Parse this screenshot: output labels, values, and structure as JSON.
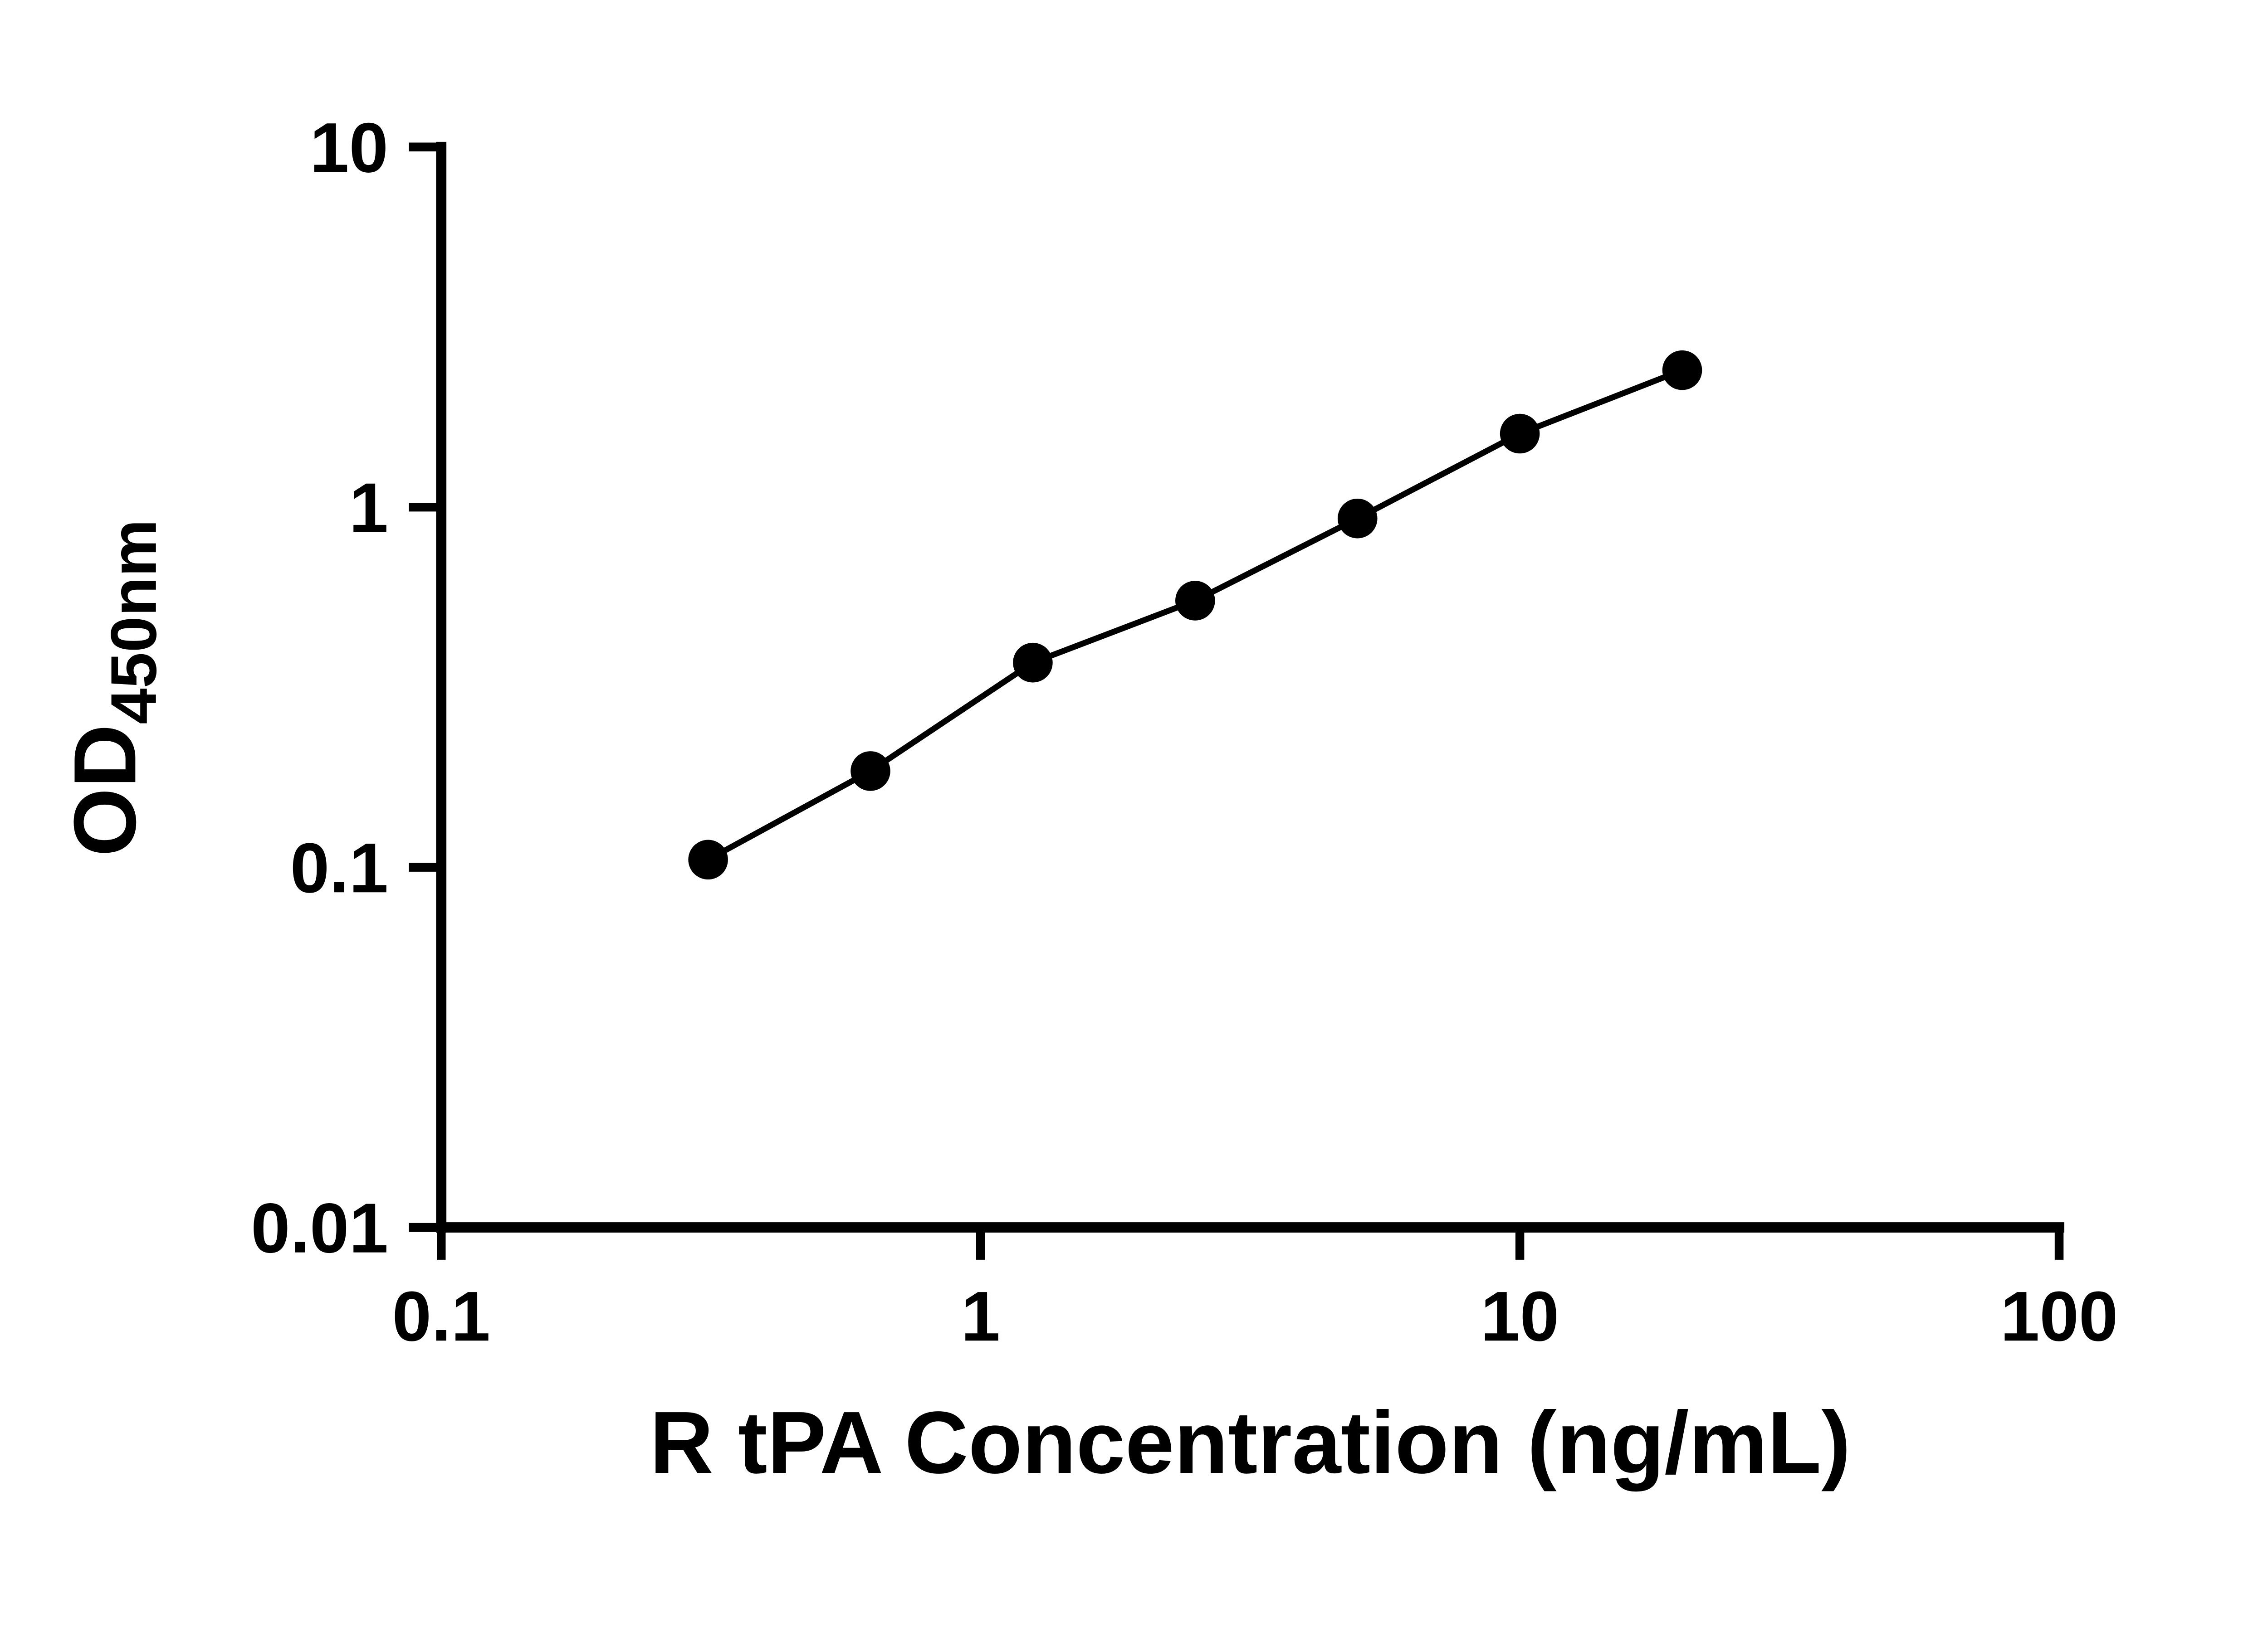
{
  "page": {
    "background": "#ffffff"
  },
  "style": {
    "axis_color": "#000000",
    "line_color": "#000000",
    "marker_color": "#000000"
  },
  "chart_data": {
    "type": "line",
    "subtype": "scatter-with-connecting-line",
    "xlabel": "R tPA Concentration (ng/mL)",
    "ylabel_main": "OD",
    "ylabel_sub": "450nm",
    "x_scale": "log",
    "y_scale": "log",
    "xlim": [
      0.1,
      100
    ],
    "ylim": [
      0.01,
      10
    ],
    "x_ticks": [
      0.1,
      1,
      10,
      100
    ],
    "x_tick_labels": [
      "0.1",
      "1",
      "10",
      "100"
    ],
    "y_ticks": [
      0.01,
      0.1,
      1,
      10
    ],
    "y_tick_labels": [
      "0.01",
      "0.1",
      "1",
      "10"
    ],
    "grid": false,
    "legend": false,
    "series": [
      {
        "marker": "filled-circle",
        "color": "#000000",
        "points": [
          {
            "x": 0.3125,
            "y": 0.105
          },
          {
            "x": 0.625,
            "y": 0.185
          },
          {
            "x": 1.25,
            "y": 0.37
          },
          {
            "x": 2.5,
            "y": 0.55
          },
          {
            "x": 5,
            "y": 0.93
          },
          {
            "x": 10,
            "y": 1.6
          },
          {
            "x": 20,
            "y": 2.4
          }
        ]
      }
    ]
  }
}
